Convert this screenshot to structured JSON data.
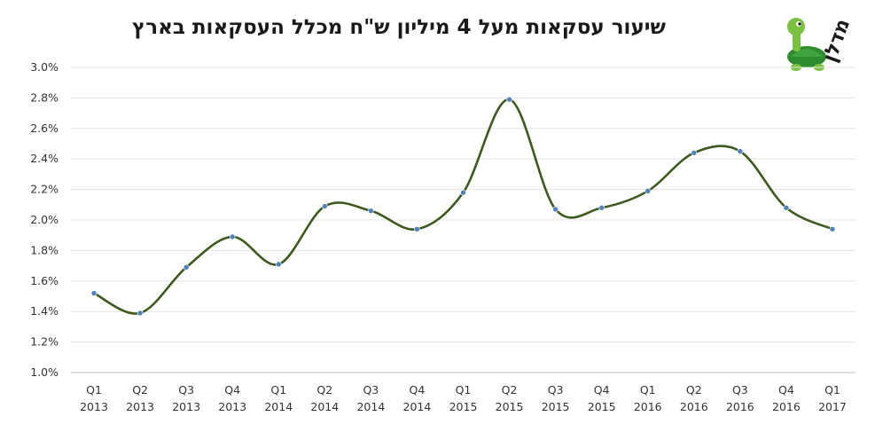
{
  "chart_data": {
    "type": "line",
    "title": "שיעור עסקאות מעל 4 מיליון ש\"ח מכלל העסקאות בארץ",
    "categories": [
      [
        "Q1",
        "2013"
      ],
      [
        "Q2",
        "2013"
      ],
      [
        "Q3",
        "2013"
      ],
      [
        "Q4",
        "2013"
      ],
      [
        "Q1",
        "2014"
      ],
      [
        "Q2",
        "2014"
      ],
      [
        "Q3",
        "2014"
      ],
      [
        "Q4",
        "2014"
      ],
      [
        "Q1",
        "2015"
      ],
      [
        "Q2",
        "2015"
      ],
      [
        "Q3",
        "2015"
      ],
      [
        "Q4",
        "2015"
      ],
      [
        "Q1",
        "2016"
      ],
      [
        "Q2",
        "2016"
      ],
      [
        "Q3",
        "2016"
      ],
      [
        "Q4",
        "2016"
      ],
      [
        "Q1",
        "2017"
      ]
    ],
    "series": [
      {
        "values": [
          1.52,
          1.39,
          1.69,
          1.89,
          1.71,
          2.09,
          2.06,
          1.94,
          2.18,
          2.79,
          2.07,
          2.08,
          2.19,
          2.44,
          2.45,
          2.08,
          1.94
        ]
      }
    ],
    "y_unit": "%",
    "ylim": [
      1.0,
      3.0
    ],
    "yticks": [
      1.0,
      1.2,
      1.4,
      1.6,
      1.8,
      2.0,
      2.2,
      2.4,
      2.6,
      2.8,
      3.0
    ],
    "ytick_labels": [
      "1.0%",
      "1.2%",
      "1.4%",
      "1.6%",
      "1.8%",
      "2.0%",
      "2.2%",
      "2.4%",
      "2.6%",
      "2.8%",
      "3.0%"
    ],
    "grid": true,
    "line_color": "#3d5a1e",
    "marker_color": "#4f81bd"
  },
  "logo": {
    "text": "מדלן",
    "icon": "turtle-icon",
    "colors": {
      "shell": "#2e8b2e",
      "body": "#7ac142",
      "text": "#1a1a1a"
    }
  }
}
